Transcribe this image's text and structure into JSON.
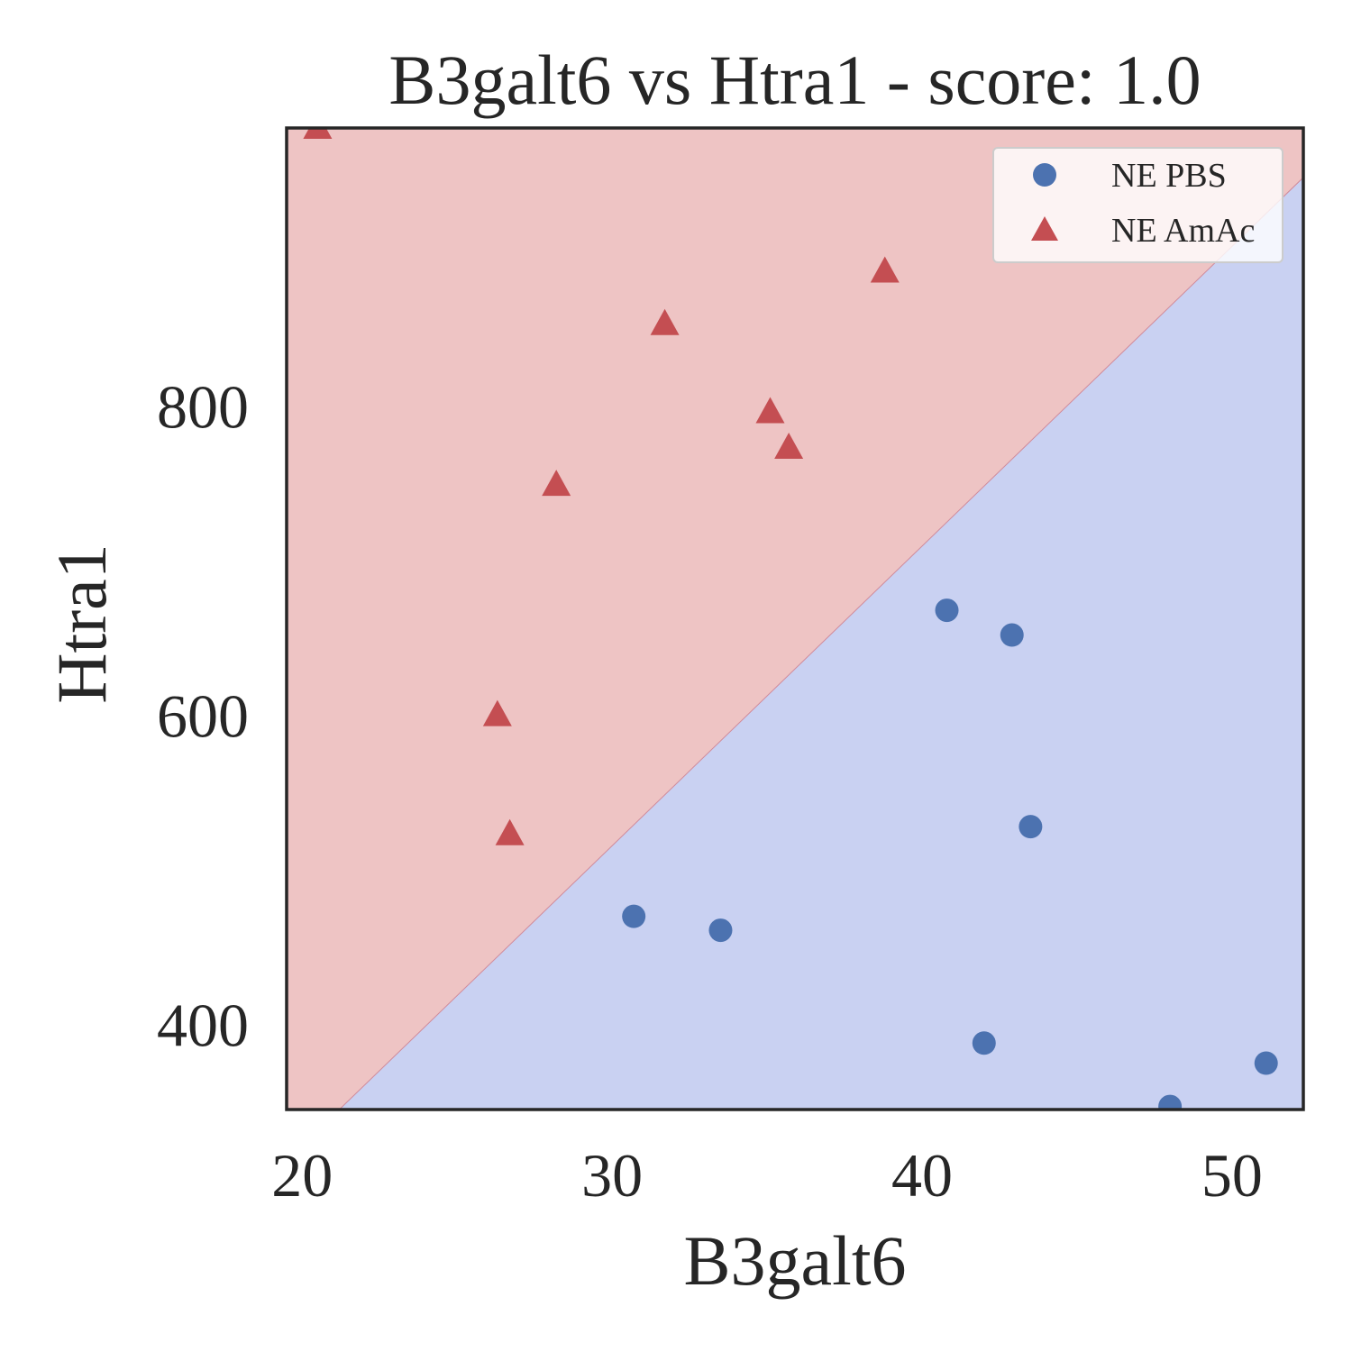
{
  "chart_data": {
    "type": "scatter",
    "title": "B3galt6 vs Htra1 - score: 1.0",
    "xlabel": "B3galt6",
    "ylabel": "Htra1",
    "xlim": [
      19.5,
      52.3
    ],
    "ylim": [
      345,
      980
    ],
    "xticks": [
      20,
      30,
      40,
      50
    ],
    "yticks": [
      400,
      600,
      800
    ],
    "xtick_labels": [
      "20",
      "30",
      "40",
      "50"
    ],
    "ytick_labels": [
      "400",
      "600",
      "800"
    ],
    "grid": false,
    "legend_position": "top-right",
    "decision_boundary": {
      "points": [
        [
          21.2,
          345
        ],
        [
          52.3,
          948
        ]
      ],
      "upper_region_color": "#eec4c4",
      "lower_region_color": "#c9d1f2",
      "line_color": "#d08a9a"
    },
    "series": [
      {
        "name": "NE PBS",
        "marker": "circle",
        "color": "#4c72b0",
        "points": [
          [
            40.8,
            668
          ],
          [
            42.9,
            652
          ],
          [
            43.5,
            528
          ],
          [
            30.7,
            470
          ],
          [
            33.5,
            461
          ],
          [
            42.0,
            388
          ],
          [
            48.0,
            347
          ],
          [
            51.1,
            375
          ]
        ]
      },
      {
        "name": "NE AmAc",
        "marker": "triangle",
        "color": "#c44e52",
        "points": [
          [
            20.5,
            980
          ],
          [
            38.8,
            887
          ],
          [
            31.7,
            853
          ],
          [
            35.1,
            796
          ],
          [
            35.7,
            773
          ],
          [
            28.2,
            749
          ],
          [
            26.3,
            600
          ],
          [
            26.7,
            523
          ]
        ]
      }
    ]
  }
}
